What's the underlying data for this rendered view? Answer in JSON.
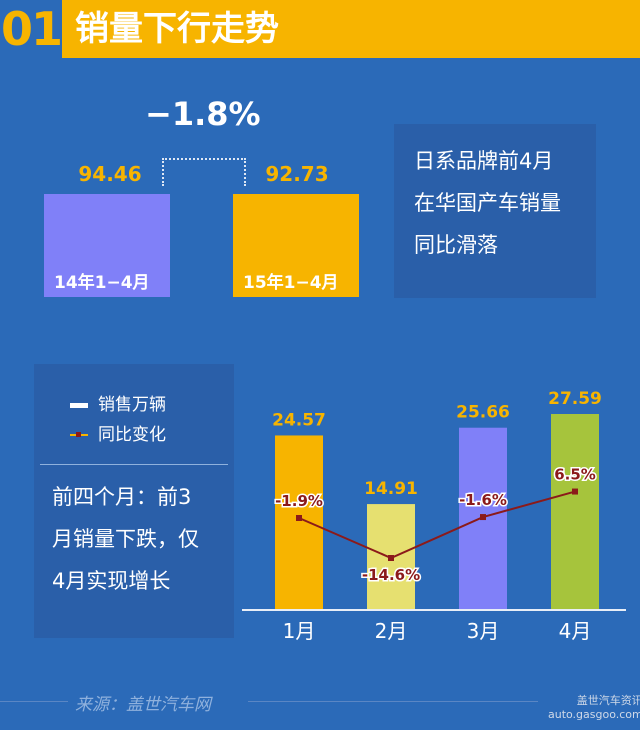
{
  "header": {
    "number": "01",
    "title": "销量下行走势"
  },
  "comparison": {
    "change": "−1.8%",
    "bars": [
      {
        "value": 94.46,
        "value_label": "94.46",
        "label": "14年1−4月",
        "color": "#8080f8"
      },
      {
        "value": 92.73,
        "value_label": "92.73",
        "label": "15年1−4月",
        "color": "#f7b400"
      }
    ]
  },
  "note_top": {
    "lines": [
      "日系品牌前4月",
      "在华国产车销量",
      "同比滑落"
    ]
  },
  "legend": {
    "sales": "销售万辆",
    "yoy": "同比变化"
  },
  "note_bottom": {
    "lines": [
      "前四个月：前3",
      "月销量下跌，仅",
      "4月实现增长"
    ]
  },
  "chart_data": {
    "type": "bar",
    "categories": [
      "1月",
      "2月",
      "3月",
      "4月"
    ],
    "series": [
      {
        "name": "销售万辆",
        "type": "bar",
        "values": [
          24.57,
          14.91,
          25.66,
          27.59
        ],
        "labels": [
          "24.57",
          "14.91",
          "25.66",
          "27.59"
        ],
        "colors": [
          "#f7b400",
          "#e6e070",
          "#8080f8",
          "#a6c43c"
        ]
      },
      {
        "name": "同比变化",
        "type": "line",
        "values": [
          -1.9,
          -14.6,
          -1.6,
          6.5
        ],
        "labels": [
          "-1.9%",
          "-14.6%",
          "-1.6%",
          "6.5%"
        ],
        "color": "#8b1a1a"
      }
    ]
  },
  "footer": {
    "source": "来源：盖世汽车网",
    "watermark_line1": "盖世汽车资讯",
    "watermark_line2": "auto.gasgoo.com"
  }
}
